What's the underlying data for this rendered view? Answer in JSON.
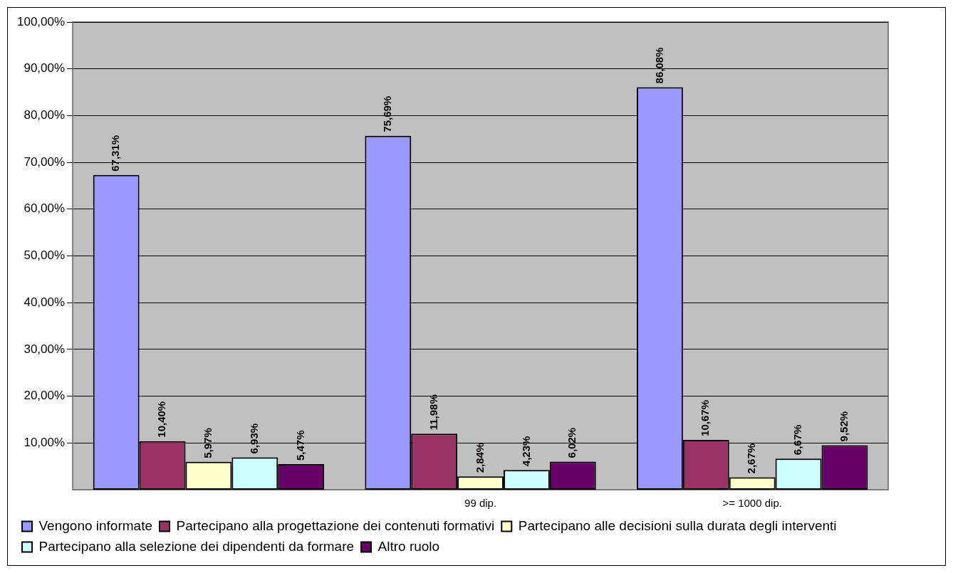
{
  "chart_data": {
    "type": "bar",
    "categories": [
      null,
      "99 dip.",
      ">= 1000 dip."
    ],
    "series": [
      {
        "name": "Vengono informate",
        "color": "#9999ff",
        "values": [
          67.31,
          75.69,
          86.08
        ],
        "value_labels": [
          "67,31%",
          "75,69%",
          "86,08%"
        ]
      },
      {
        "name": "Partecipano alla progettazione dei contenuti formativi",
        "color": "#993366",
        "values": [
          10.4,
          11.98,
          10.67
        ],
        "value_labels": [
          "10,40%",
          "11,98%",
          "10,67%"
        ]
      },
      {
        "name": "Partecipano alle decisioni sulla durata degli interventi",
        "color": "#ffffcc",
        "values": [
          5.97,
          2.84,
          2.67
        ],
        "value_labels": [
          "5,97%",
          "2,84%",
          "2,67%"
        ]
      },
      {
        "name": "Partecipano alla selezione dei dipendenti da formare",
        "color": "#ccffff",
        "values": [
          6.93,
          4.23,
          6.67
        ],
        "value_labels": [
          "6,93%",
          "4,23%",
          "6,67%"
        ]
      },
      {
        "name": "Altro ruolo",
        "color": "#660066",
        "values": [
          5.47,
          6.02,
          9.52
        ],
        "value_labels": [
          "5,47%",
          "6,02%",
          "9,52%"
        ]
      }
    ],
    "ylim": [
      0,
      100
    ],
    "yticks": [
      {
        "value": 10,
        "label": "10,00%"
      },
      {
        "value": 20,
        "label": "20,00%"
      },
      {
        "value": 30,
        "label": "30,00%"
      },
      {
        "value": 40,
        "label": "40,00%"
      },
      {
        "value": 50,
        "label": "50,00%"
      },
      {
        "value": 60,
        "label": "60,00%"
      },
      {
        "value": 70,
        "label": "70,00%"
      },
      {
        "value": 80,
        "label": "80,00%"
      },
      {
        "value": 90,
        "label": "90,00%"
      },
      {
        "value": 100,
        "label": "100,00%"
      }
    ],
    "grid": "y",
    "legend": "bottom left"
  }
}
